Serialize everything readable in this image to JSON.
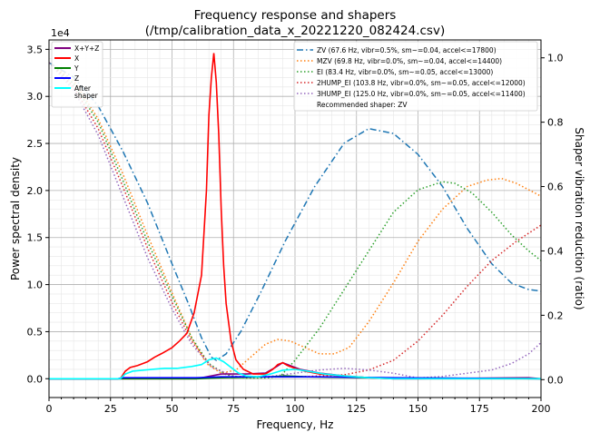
{
  "chart_data": {
    "type": "line",
    "title": "Frequency response and shapers",
    "subtitle": "(/tmp/calibration_data_x_20221220_082424.csv)",
    "xlabel": "Frequency, Hz",
    "ylabel": "Power spectral density",
    "y2label": "Shaper vibration reduction (ratio)",
    "y_multiplier": "1e4",
    "xlim": [
      0,
      200
    ],
    "ylim": [
      -0.2,
      3.6
    ],
    "y2lim": [
      -0.0556,
      1.0556
    ],
    "xticks": [
      "0",
      "25",
      "50",
      "75",
      "100",
      "125",
      "150",
      "175",
      "200"
    ],
    "yticks": [
      "0.0",
      "0.5",
      "1.0",
      "1.5",
      "2.0",
      "2.5",
      "3.0",
      "3.5"
    ],
    "y2ticks": [
      "0.0",
      "0.2",
      "0.4",
      "0.6",
      "0.8",
      "1.0"
    ],
    "grid": true,
    "psd_series": [
      {
        "name": "X+Y+Z",
        "color": "#800080",
        "style": "solid",
        "points": [
          [
            0,
            0
          ],
          [
            28,
            0
          ],
          [
            60,
            0
          ],
          [
            70,
            0.05
          ],
          [
            80,
            0.05
          ],
          [
            88,
            0.06
          ],
          [
            92,
            0.12
          ],
          [
            95,
            0.17
          ],
          [
            98,
            0.14
          ],
          [
            102,
            0.1
          ],
          [
            110,
            0.06
          ],
          [
            120,
            0.03
          ],
          [
            130,
            0.01
          ],
          [
            140,
            0
          ],
          [
            150,
            0
          ],
          [
            195,
            0.01
          ],
          [
            200,
            0
          ]
        ]
      },
      {
        "name": "X",
        "color": "#ff0000",
        "style": "solid",
        "points": [
          [
            0,
            0
          ],
          [
            29,
            0
          ],
          [
            31,
            0.08
          ],
          [
            33,
            0.12
          ],
          [
            36,
            0.14
          ],
          [
            40,
            0.18
          ],
          [
            43,
            0.23
          ],
          [
            46,
            0.27
          ],
          [
            50,
            0.33
          ],
          [
            53,
            0.4
          ],
          [
            56,
            0.48
          ],
          [
            59,
            0.7
          ],
          [
            62,
            1.1
          ],
          [
            64,
            2.0
          ],
          [
            65,
            2.8
          ],
          [
            66,
            3.2
          ],
          [
            67,
            3.46
          ],
          [
            68,
            3.15
          ],
          [
            69,
            2.6
          ],
          [
            70,
            1.8
          ],
          [
            71,
            1.2
          ],
          [
            72,
            0.8
          ],
          [
            74,
            0.4
          ],
          [
            76,
            0.2
          ],
          [
            79,
            0.1
          ],
          [
            83,
            0.05
          ],
          [
            88,
            0.05
          ],
          [
            91,
            0.1
          ],
          [
            93,
            0.15
          ],
          [
            95,
            0.17
          ],
          [
            97,
            0.14
          ],
          [
            100,
            0.11
          ],
          [
            104,
            0.08
          ],
          [
            110,
            0.05
          ],
          [
            120,
            0.03
          ],
          [
            130,
            0.01
          ],
          [
            140,
            0
          ],
          [
            200,
            0
          ]
        ]
      },
      {
        "name": "Y",
        "color": "#008000",
        "style": "solid",
        "points": [
          [
            0,
            0
          ],
          [
            60,
            0
          ],
          [
            70,
            0.01
          ],
          [
            90,
            0.02
          ],
          [
            96,
            0.03
          ],
          [
            105,
            0.02
          ],
          [
            130,
            0.01
          ],
          [
            200,
            0
          ]
        ]
      },
      {
        "name": "Z",
        "color": "#0000ff",
        "style": "solid",
        "points": [
          [
            0,
            0
          ],
          [
            28,
            0
          ],
          [
            30,
            0.01
          ],
          [
            60,
            0.01
          ],
          [
            70,
            0.02
          ],
          [
            90,
            0.02
          ],
          [
            110,
            0.02
          ],
          [
            140,
            0.01
          ],
          [
            200,
            0
          ]
        ]
      },
      {
        "name": "After\nshaper",
        "color": "#00ffff",
        "style": "solid",
        "points": [
          [
            0,
            0
          ],
          [
            29,
            0
          ],
          [
            31,
            0.05
          ],
          [
            34,
            0.08
          ],
          [
            38,
            0.09
          ],
          [
            42,
            0.1
          ],
          [
            47,
            0.11
          ],
          [
            52,
            0.11
          ],
          [
            55,
            0.12
          ],
          [
            58,
            0.13
          ],
          [
            62,
            0.15
          ],
          [
            65,
            0.2
          ],
          [
            68,
            0.22
          ],
          [
            71,
            0.18
          ],
          [
            74,
            0.12
          ],
          [
            77,
            0.06
          ],
          [
            80,
            0.03
          ],
          [
            85,
            0.02
          ],
          [
            90,
            0.05
          ],
          [
            95,
            0.09
          ],
          [
            100,
            0.1
          ],
          [
            105,
            0.08
          ],
          [
            112,
            0.05
          ],
          [
            120,
            0.03
          ],
          [
            130,
            0.01
          ],
          [
            140,
            0
          ],
          [
            200,
            0
          ]
        ]
      }
    ],
    "shaper_series": [
      {
        "name": "ZV (67.6 Hz, vibr=0.5%, sm~=0.04, accel<=17800)",
        "color": "#1f77b4",
        "style": "dashdot",
        "points": [
          [
            0,
            0.985
          ],
          [
            10,
            0.94
          ],
          [
            20,
            0.85
          ],
          [
            30,
            0.71
          ],
          [
            40,
            0.55
          ],
          [
            50,
            0.36
          ],
          [
            57,
            0.23
          ],
          [
            62,
            0.13
          ],
          [
            66,
            0.07
          ],
          [
            68,
            0.06
          ],
          [
            72,
            0.08
          ],
          [
            78,
            0.15
          ],
          [
            86,
            0.27
          ],
          [
            96,
            0.43
          ],
          [
            108,
            0.6
          ],
          [
            120,
            0.735
          ],
          [
            130,
            0.78
          ],
          [
            140,
            0.765
          ],
          [
            150,
            0.7
          ],
          [
            160,
            0.6
          ],
          [
            170,
            0.47
          ],
          [
            180,
            0.36
          ],
          [
            188,
            0.3
          ],
          [
            195,
            0.28
          ],
          [
            200,
            0.275
          ]
        ]
      },
      {
        "name": "MZV (69.8 Hz, vibr=0.0%, sm~=0.04, accel<=14400)",
        "color": "#ff7f0e",
        "style": "dotted",
        "points": [
          [
            0,
            0.985
          ],
          [
            10,
            0.93
          ],
          [
            20,
            0.81
          ],
          [
            30,
            0.64
          ],
          [
            40,
            0.45
          ],
          [
            50,
            0.27
          ],
          [
            58,
            0.13
          ],
          [
            64,
            0.05
          ],
          [
            70,
            0.02
          ],
          [
            76,
            0.03
          ],
          [
            82,
            0.07
          ],
          [
            88,
            0.11
          ],
          [
            93,
            0.125
          ],
          [
            98,
            0.12
          ],
          [
            104,
            0.1
          ],
          [
            110,
            0.08
          ],
          [
            116,
            0.08
          ],
          [
            122,
            0.1
          ],
          [
            130,
            0.18
          ],
          [
            140,
            0.3
          ],
          [
            150,
            0.43
          ],
          [
            160,
            0.53
          ],
          [
            170,
            0.6
          ],
          [
            178,
            0.62
          ],
          [
            184,
            0.625
          ],
          [
            190,
            0.61
          ],
          [
            195,
            0.59
          ],
          [
            200,
            0.57
          ]
        ]
      },
      {
        "name": "EI (83.4 Hz, vibr=0.0%, sm~=0.05, accel<=13000)",
        "color": "#2ca02c",
        "style": "dotted",
        "points": [
          [
            0,
            0.985
          ],
          [
            10,
            0.92
          ],
          [
            20,
            0.8
          ],
          [
            30,
            0.62
          ],
          [
            40,
            0.43
          ],
          [
            50,
            0.26
          ],
          [
            58,
            0.13
          ],
          [
            65,
            0.05
          ],
          [
            72,
            0.015
          ],
          [
            80,
            0.005
          ],
          [
            88,
            0.005
          ],
          [
            94,
            0.01
          ],
          [
            100,
            0.06
          ],
          [
            110,
            0.16
          ],
          [
            120,
            0.28
          ],
          [
            130,
            0.4
          ],
          [
            140,
            0.52
          ],
          [
            150,
            0.59
          ],
          [
            160,
            0.615
          ],
          [
            165,
            0.61
          ],
          [
            172,
            0.58
          ],
          [
            180,
            0.52
          ],
          [
            188,
            0.45
          ],
          [
            195,
            0.4
          ],
          [
            200,
            0.37
          ]
        ]
      },
      {
        "name": "2HUMP_EI (103.8 Hz, vibr=0.0%, sm~=0.05, accel<=12000)",
        "color": "#d62728",
        "style": "dotted",
        "points": [
          [
            0,
            0.985
          ],
          [
            10,
            0.91
          ],
          [
            20,
            0.78
          ],
          [
            30,
            0.6
          ],
          [
            40,
            0.41
          ],
          [
            50,
            0.24
          ],
          [
            58,
            0.12
          ],
          [
            66,
            0.04
          ],
          [
            75,
            0.01
          ],
          [
            90,
            0.01
          ],
          [
            105,
            0.01
          ],
          [
            120,
            0.015
          ],
          [
            130,
            0.03
          ],
          [
            140,
            0.06
          ],
          [
            150,
            0.12
          ],
          [
            160,
            0.2
          ],
          [
            170,
            0.29
          ],
          [
            180,
            0.37
          ],
          [
            190,
            0.43
          ],
          [
            200,
            0.48
          ]
        ]
      },
      {
        "name": "3HUMP_EI (125.0 Hz, vibr=0.0%, sm~=0.05, accel<=11400)",
        "color": "#9467bd",
        "style": "dotted",
        "points": [
          [
            0,
            0.985
          ],
          [
            10,
            0.9
          ],
          [
            20,
            0.76
          ],
          [
            30,
            0.57
          ],
          [
            40,
            0.38
          ],
          [
            50,
            0.22
          ],
          [
            58,
            0.11
          ],
          [
            66,
            0.04
          ],
          [
            75,
            0.01
          ],
          [
            90,
            0.01
          ],
          [
            110,
            0.03
          ],
          [
            120,
            0.035
          ],
          [
            130,
            0.03
          ],
          [
            140,
            0.02
          ],
          [
            150,
            0.005
          ],
          [
            160,
            0.01
          ],
          [
            170,
            0.02
          ],
          [
            180,
            0.03
          ],
          [
            188,
            0.05
          ],
          [
            195,
            0.08
          ],
          [
            200,
            0.115
          ]
        ]
      }
    ],
    "shaper_legend_extra": "Recommended shaper: ZV",
    "legend_left_position": "top-left",
    "legend_right_position": "top-right"
  }
}
